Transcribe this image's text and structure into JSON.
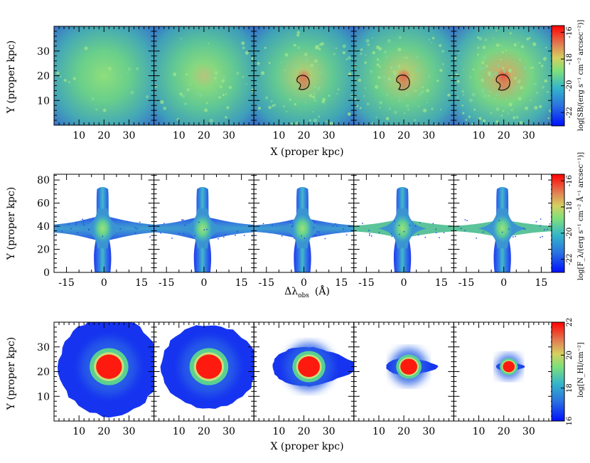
{
  "chart_data": [
    {
      "type": "heatmap",
      "name": "surface-brightness-maps",
      "panels": 5,
      "xlabel": "X (proper kpc)",
      "ylabel": "Y (proper kpc)",
      "xlim": [
        0,
        40
      ],
      "ylim": [
        0,
        40
      ],
      "xticks": [
        10,
        20,
        30
      ],
      "yticks": [
        10,
        20,
        30
      ],
      "colorbar": {
        "label": "log[SB/(erg s⁻¹ cm⁻² arcsec⁻²)]",
        "range": [
          -23,
          -15.5
        ],
        "ticks": [
          -22,
          -20,
          -18,
          -16
        ]
      },
      "core_intensity": [
        0.42,
        0.5,
        0.72,
        0.8,
        0.85
      ],
      "contour_present": [
        false,
        false,
        true,
        true,
        true
      ]
    },
    {
      "type": "heatmap",
      "name": "spectral-maps",
      "panels": 5,
      "xlabel": "Δλ",
      "xlabel_sub": "obs",
      "xlabel_unit": "(Å)",
      "ylabel": "Y (proper kpc)",
      "xlim": [
        -20,
        20
      ],
      "ylim": [
        0,
        85
      ],
      "xticks": [
        -15,
        0,
        15
      ],
      "yticks": [
        0,
        20,
        40,
        60,
        80
      ],
      "colorbar": {
        "label": "log[F_λ/(erg s⁻¹ cm⁻² Å⁻¹ arcsec⁻¹)]",
        "range": [
          -23,
          -15.5
        ],
        "ticks": [
          -22,
          -20,
          -18,
          -16
        ]
      },
      "wing_strength": [
        1.0,
        0.9,
        0.7,
        0.55,
        0.45
      ]
    },
    {
      "type": "heatmap",
      "name": "column-density-maps",
      "panels": 5,
      "xlabel": "X (proper kpc)",
      "ylabel": "Y (proper kpc)",
      "xlim": [
        0,
        40
      ],
      "ylim": [
        0,
        40
      ],
      "xticks": [
        10,
        20,
        30
      ],
      "yticks": [
        10,
        20,
        30
      ],
      "colorbar": {
        "label": "log[N_HI/cm⁻²]",
        "range": [
          16,
          22
        ],
        "ticks": [
          16,
          18,
          20,
          22
        ]
      },
      "cloud_center": [
        22,
        22
      ],
      "cloud_size_kpc": [
        [
          40,
          40
        ],
        [
          38,
          34
        ],
        [
          26,
          16
        ],
        [
          16,
          7
        ],
        [
          9,
          3.5
        ]
      ]
    }
  ],
  "text": {
    "xlabel_top": "X (proper kpc)",
    "xlabel_mid": "Δλ",
    "xlabel_mid_sub": "obs",
    "xlabel_mid_unit": "(Å)",
    "xlabel_bottom": "X (proper kpc)",
    "ylabel": "Y (proper kpc)",
    "cb1_label": "log[SB/(erg s⁻¹ cm⁻² arcsec⁻²)]",
    "cb2_label": "log[F_λ/(erg s⁻¹ cm⁻² Å⁻¹ arcsec⁻¹)]",
    "cb3_label": "log[N_HI/cm⁻²]"
  }
}
